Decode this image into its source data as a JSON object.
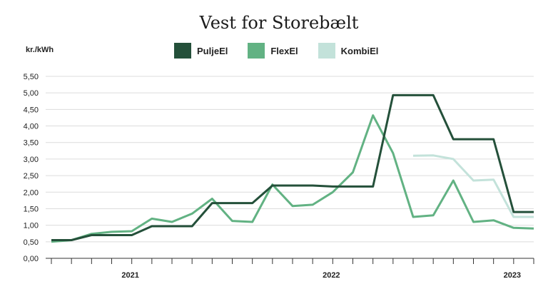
{
  "chart_data": {
    "type": "line",
    "title": "Vest for Storebælt",
    "ylabel": "kr./kWh",
    "xlabel": "",
    "ylim": [
      0,
      5.5
    ],
    "yticks": [
      "0,00",
      "0,50",
      "1,00",
      "1,50",
      "2,00",
      "2,50",
      "3,00",
      "3,50",
      "4,00",
      "4,50",
      "5,00",
      "5,50"
    ],
    "x_count": 25,
    "year_labels": [
      {
        "label": "2021",
        "index": 4
      },
      {
        "label": "2022",
        "index": 14
      },
      {
        "label": "2023",
        "index": 23
      }
    ],
    "grid": true,
    "legend": "top",
    "series": [
      {
        "name": "PuljeEl",
        "color": "#24503a",
        "values": [
          0.55,
          0.55,
          0.7,
          0.7,
          0.7,
          0.97,
          0.97,
          0.97,
          1.67,
          1.67,
          1.67,
          2.2,
          2.2,
          2.2,
          2.17,
          2.17,
          2.17,
          4.93,
          4.93,
          4.93,
          3.6,
          3.6,
          3.6,
          1.4,
          1.4
        ]
      },
      {
        "name": "FlexEl",
        "color": "#62b283",
        "values": [
          0.5,
          0.55,
          0.74,
          0.8,
          0.82,
          1.2,
          1.1,
          1.35,
          1.8,
          1.13,
          1.1,
          2.23,
          1.58,
          1.62,
          2.0,
          2.6,
          4.32,
          3.18,
          1.25,
          1.3,
          2.35,
          1.1,
          1.15,
          0.92,
          0.9
        ]
      },
      {
        "name": "KombiEl",
        "color": "#c3e2da",
        "values": [
          null,
          null,
          null,
          null,
          null,
          null,
          null,
          null,
          null,
          null,
          null,
          null,
          null,
          null,
          null,
          null,
          null,
          null,
          3.1,
          3.11,
          3.0,
          2.35,
          2.38,
          1.25,
          1.25
        ]
      }
    ]
  }
}
